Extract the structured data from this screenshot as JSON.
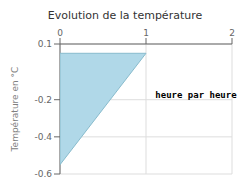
{
  "chart_data": {
    "type": "area",
    "title": "Evolution de la température",
    "ylabel": "Température en °C",
    "xlim": [
      0,
      2
    ],
    "ylim": [
      -0.6,
      0.1
    ],
    "xticks": [
      0,
      1,
      2
    ],
    "yticks": [
      -0.6,
      -0.4,
      -0.2,
      0.1
    ],
    "grid": true,
    "series": [
      {
        "type": "area",
        "color": "#b0d8e8",
        "x": [
          0,
          0,
          1
        ],
        "values": [
          0.05,
          -0.55,
          0.05
        ]
      },
      {
        "type": "line",
        "color": "#88bbcc",
        "x": [
          0,
          0,
          1,
          0
        ],
        "values": [
          0.05,
          -0.55,
          0.05,
          0.05
        ]
      }
    ],
    "annotations": [
      {
        "text": "heure par heure",
        "x": 1.05,
        "y": -0.175
      }
    ]
  }
}
